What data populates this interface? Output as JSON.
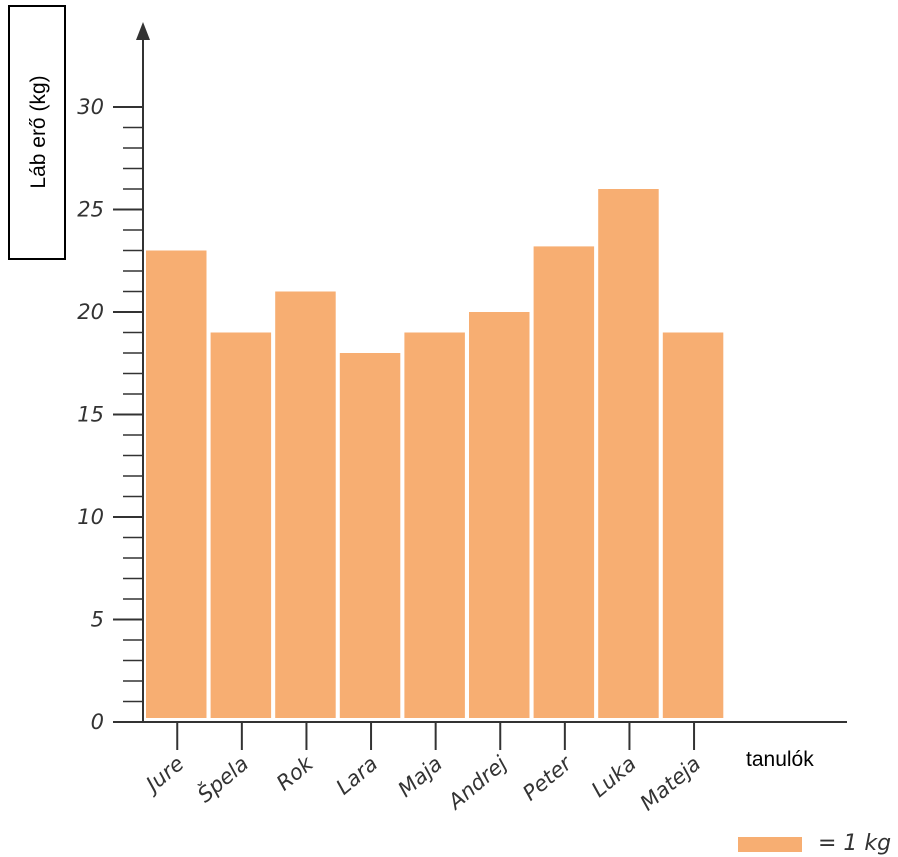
{
  "chart_data": {
    "type": "bar",
    "categories": [
      "Jure",
      "Špela",
      "Rok",
      "Lara",
      "Maja",
      "Andrej",
      "Peter",
      "Luka",
      "Mateja"
    ],
    "values": [
      23,
      19,
      21,
      18,
      19,
      20,
      23.2,
      26,
      19
    ],
    "ylabel": "Láb erő (kg)",
    "xlabel": "tanulók",
    "ylim": [
      0,
      30
    ],
    "yticks": [
      "0",
      "5",
      "10",
      "15",
      "20",
      "25",
      "30"
    ],
    "minor_tick_step": 1,
    "grid": false,
    "legend": {
      "label": "= 1 kg",
      "placement": "bottom-right"
    },
    "colors": {
      "bar": "#f7ae72",
      "axis": "#333333"
    }
  }
}
